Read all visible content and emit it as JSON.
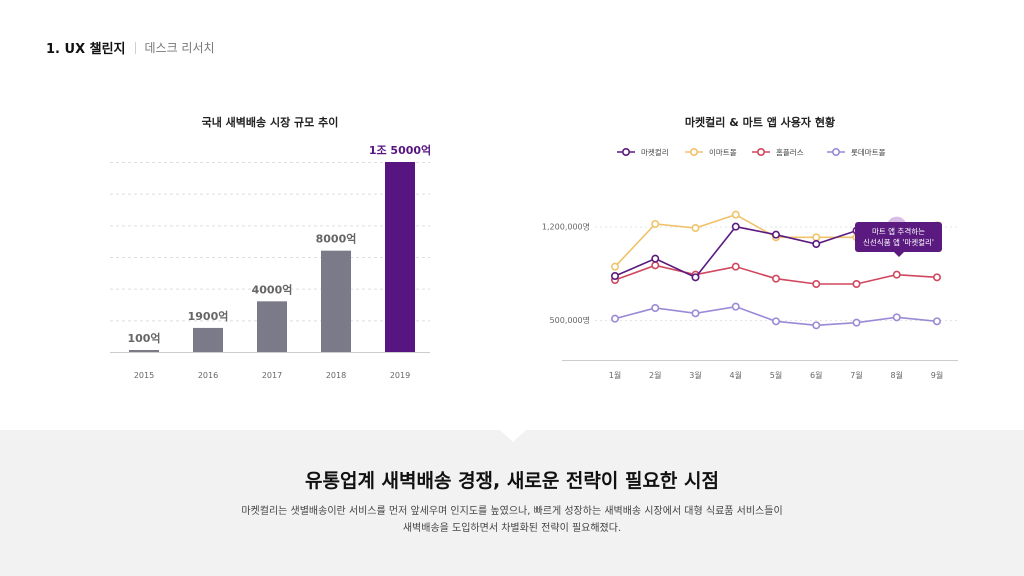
{
  "header": {
    "number_title": "1. UX 챌린지",
    "subtitle": "데스크 리서치"
  },
  "chart_data": [
    {
      "type": "bar",
      "title": "국내 새벽배송 시장 규모 추이",
      "categories": [
        "2015",
        "2016",
        "2017",
        "2018",
        "2019"
      ],
      "values": [
        100,
        1900,
        4000,
        8000,
        15000
      ],
      "value_labels": [
        "100억",
        "1900억",
        "4000억",
        "8000억",
        "1조 5000억"
      ],
      "unit": "억",
      "highlight_index": 4,
      "grid": true,
      "colors": {
        "default": "#7a7a88",
        "highlight": "#561580"
      }
    },
    {
      "type": "line",
      "title": "마켓컬리 & 마트 앱 사용자 현황",
      "categories": [
        "1월",
        "2월",
        "3월",
        "4월",
        "5월",
        "6월",
        "7월",
        "8월",
        "9월"
      ],
      "yticks": [
        {
          "value": 500000,
          "label": "500,000명"
        },
        {
          "value": 1200000,
          "label": "1,200,000명"
        }
      ],
      "ylim": [
        200000,
        1700000
      ],
      "legend_position": "top-left",
      "series": [
        {
          "name": "마켓컬리",
          "color": "#5a1a7f",
          "values": [
            830000,
            960000,
            820000,
            1200000,
            1140000,
            1070000,
            1170000,
            1200000,
            1170000
          ]
        },
        {
          "name": "이마트몰",
          "color": "#f0c36b",
          "values": [
            900000,
            1220000,
            1190000,
            1290000,
            1120000,
            1120000,
            1120000,
            1200000,
            1210000
          ]
        },
        {
          "name": "홈플러스",
          "color": "#d0475e",
          "values": [
            800000,
            910000,
            840000,
            900000,
            810000,
            770000,
            770000,
            840000,
            820000
          ]
        },
        {
          "name": "롯데마트몰",
          "color": "#9b8ad6",
          "values": [
            510000,
            590000,
            550000,
            600000,
            490000,
            460000,
            480000,
            520000,
            490000
          ]
        }
      ],
      "annotation": {
        "series": "마켓컬리",
        "index": 7,
        "lines": [
          "마트 앱 추격하는",
          "신선식품 앱 '마켓컬리'"
        ]
      }
    }
  ],
  "summary": {
    "headline": "유통업계 새벽배송 경쟁, 새로운 전략이 필요한 시점",
    "line1": "마켓컬리는 샛별배송이란 서비스를 먼저 앞세우며 인지도를 높였으나,  빠르게 성장하는 새벽배송 시장에서 대형 식료품 서비스들이",
    "line2": "새벽배송을 도입하면서 차별화된 전략이 필요해졌다."
  }
}
